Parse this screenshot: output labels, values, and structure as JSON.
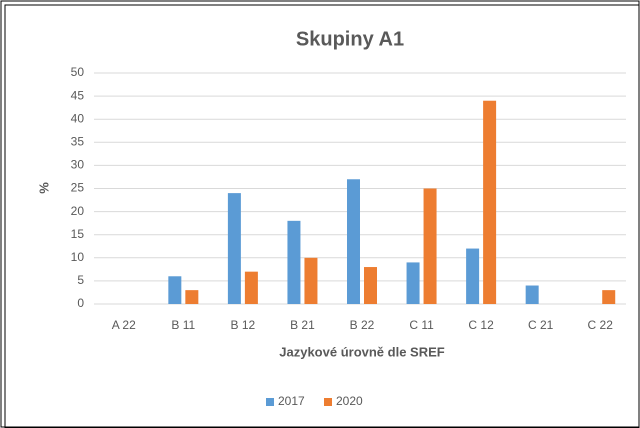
{
  "chart_data": {
    "type": "bar",
    "title": "Skupiny A1",
    "x_label": "Jazykové úrovně dle SREF",
    "y_label": "%",
    "categories": [
      "A 22",
      "B 11",
      "B 12",
      "B 21",
      "B 22",
      "C 11",
      "C 12",
      "C 21",
      "C 22"
    ],
    "series": [
      {
        "name": "2017",
        "color": "#5b9bd5",
        "values": [
          0,
          6,
          24,
          18,
          27,
          9,
          12,
          4,
          0
        ]
      },
      {
        "name": "2020",
        "color": "#ed7d31",
        "values": [
          0,
          3,
          7,
          10,
          8,
          25,
          44,
          0,
          3
        ]
      }
    ],
    "ylim": [
      0,
      50
    ],
    "yticks": [
      0,
      5,
      10,
      15,
      20,
      25,
      30,
      35,
      40,
      45,
      50
    ],
    "grid": true,
    "legend": "bottom"
  }
}
